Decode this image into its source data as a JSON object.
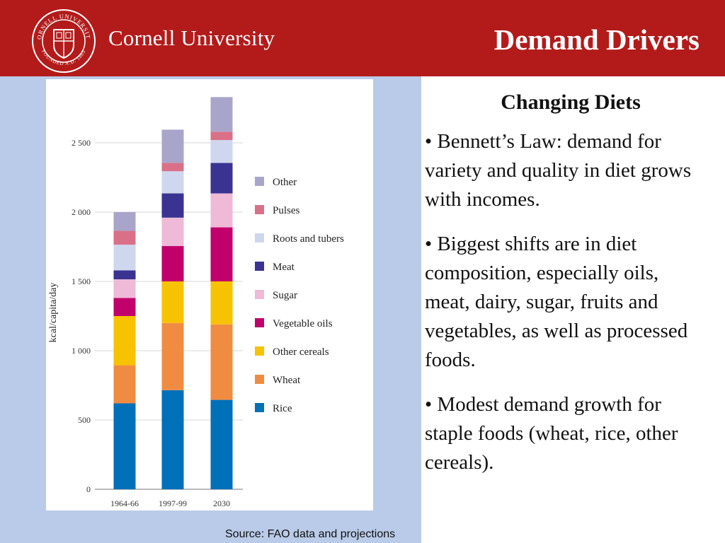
{
  "header": {
    "brand": "Cornell University",
    "seal_top_text": "CORNELL UNIVERSITY",
    "seal_bottom_text": "FOUNDED A.D. 1865",
    "slide_title": "Demand Drivers"
  },
  "body": {
    "subheading": "Changing Diets",
    "bullets": [
      "• Bennett’s Law: demand for variety and quality in diet grows with incomes.",
      "• Biggest shifts are in diet composition, especially oils, meat, dairy, sugar, fruits and vegetables, as well as processed foods.",
      "• Modest demand growth for staple foods (wheat, rice, other cereals)."
    ]
  },
  "source_note": "Source: FAO data and projections",
  "chart_data": {
    "type": "bar",
    "stacked": true,
    "categories": [
      "1964-66",
      "1997-99",
      "2030"
    ],
    "xlabel": "",
    "ylabel": "kcal/capita/day",
    "ylim": [
      0,
      2850
    ],
    "yticks": [
      0,
      500,
      1000,
      1500,
      2000,
      2500
    ],
    "ytick_labels": [
      "0",
      "500",
      "1 000",
      "1 500",
      "2 000",
      "2 500"
    ],
    "legend_position": "right",
    "series": [
      {
        "name": "Rice",
        "color": "#0070b8",
        "values": [
          620,
          715,
          645
        ]
      },
      {
        "name": "Wheat",
        "color": "#f08c42",
        "values": [
          275,
          485,
          545
        ]
      },
      {
        "name": "Other cereals",
        "color": "#f7c300",
        "values": [
          355,
          300,
          310
        ]
      },
      {
        "name": "Vegetable oils",
        "color": "#c2006b",
        "values": [
          130,
          255,
          390
        ]
      },
      {
        "name": "Sugar",
        "color": "#eebad7",
        "values": [
          135,
          205,
          245
        ]
      },
      {
        "name": "Meat",
        "color": "#3a3392",
        "values": [
          65,
          175,
          220
        ]
      },
      {
        "name": "Roots and tubers",
        "color": "#cfd7ee",
        "values": [
          185,
          160,
          165
        ]
      },
      {
        "name": "Pulses",
        "color": "#d97088",
        "values": [
          100,
          60,
          60
        ]
      },
      {
        "name": "Other",
        "color": "#a9a5ca",
        "values": [
          135,
          240,
          250
        ]
      }
    ]
  }
}
